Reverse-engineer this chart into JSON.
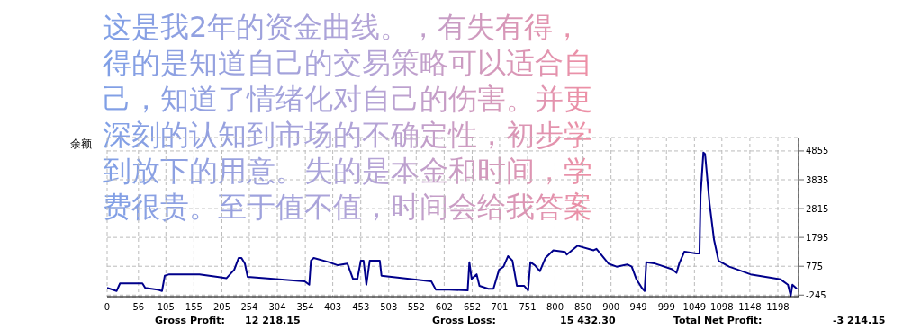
{
  "chart_data": {
    "type": "line",
    "title": "余额",
    "x": [
      0,
      17,
      23,
      63,
      68,
      90,
      98,
      103,
      111,
      165,
      197,
      213,
      227,
      235,
      240,
      246,
      251,
      353,
      361,
      364,
      369,
      396,
      412,
      429,
      439,
      447,
      453,
      458,
      463,
      469,
      487,
      490,
      579,
      587,
      611,
      644,
      647,
      651,
      660,
      665,
      681,
      690,
      700,
      708,
      716,
      724,
      732,
      745,
      752,
      756,
      764,
      773,
      783,
      797,
      818,
      821,
      840,
      869,
      874,
      896,
      910,
      929,
      937,
      945,
      955,
      960,
      963,
      977,
      1009,
      1017,
      1022,
      1031,
      1052,
      1058,
      1060,
      1065,
      1068,
      1076,
      1084,
      1092,
      1111,
      1127,
      1149,
      1203,
      1216,
      1221,
      1224,
      1232
    ],
    "series": [
      {
        "color": "#00008b",
        "values": [
          10,
          -100,
          170,
          170,
          10,
          -50,
          -100,
          440,
          490,
          490,
          400,
          350,
          650,
          1070,
          1070,
          870,
          400,
          240,
          120,
          970,
          1070,
          920,
          810,
          870,
          330,
          330,
          970,
          970,
          120,
          970,
          970,
          440,
          240,
          -50,
          -50,
          -80,
          920,
          330,
          490,
          80,
          -20,
          -20,
          650,
          760,
          1130,
          970,
          80,
          80,
          -80,
          920,
          810,
          600,
          1070,
          1340,
          1280,
          1190,
          1500,
          1340,
          1390,
          860,
          760,
          840,
          760,
          330,
          10,
          -100,
          920,
          880,
          670,
          540,
          880,
          1290,
          1230,
          1230,
          3300,
          4800,
          4740,
          2990,
          1710,
          970,
          760,
          650,
          490,
          310,
          120,
          -270,
          120,
          -20
        ]
      }
    ],
    "xlim": [
      0,
      1235
    ],
    "ylim": [
      -300,
      5330
    ],
    "xticks": [
      0,
      56,
      105,
      155,
      205,
      254,
      304,
      354,
      403,
      453,
      503,
      552,
      602,
      652,
      701,
      751,
      800,
      850,
      900,
      949,
      999,
      1049,
      1098,
      1148,
      1198
    ],
    "yticks": [
      -245,
      775,
      1795,
      2815,
      3835,
      4855
    ],
    "grid": true,
    "marker": "none",
    "line_style": "solid",
    "legend": false,
    "annotations": [
      "这是我2年的资金曲线。，有失有得，得的是知道自己的交易策略可以适合自己，知道了情绪化对自己的伤害。并更深刻的认知到市场的不确定性，初步学到放下的用意。失的是本金和时间，学费很贵。至于值不值，时间会给我答案",
      "Gross Profit:",
      "12 218.15",
      "Gross Loss:",
      "15 432.30",
      "Total Net Profit:",
      "-3 214.15"
    ]
  }
}
